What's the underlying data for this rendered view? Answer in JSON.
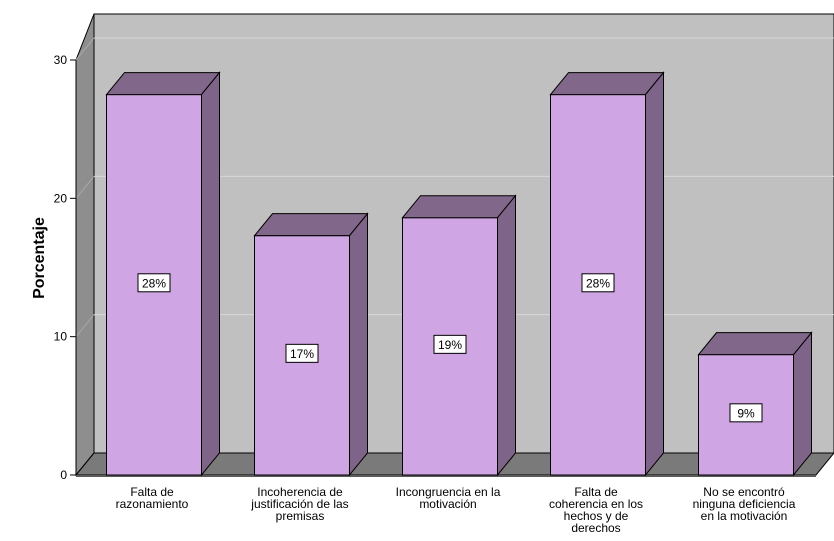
{
  "chart_data": {
    "type": "bar",
    "style": "3d",
    "title": "",
    "xlabel": "",
    "ylabel": "Porcentaje",
    "ylim": [
      0,
      30
    ],
    "yticks": [
      0,
      10,
      20,
      30
    ],
    "grid": true,
    "legend": "none",
    "categories": [
      [
        "Falta de",
        "razonamiento"
      ],
      [
        "Incoherencia de",
        "justificación de las",
        "premisas"
      ],
      [
        "Incongruencia en la",
        "motivación"
      ],
      [
        "Falta de",
        "coherencia en los",
        "hechos y de",
        "derechos"
      ],
      [
        "No se encontró",
        "ninguna deficiencia",
        "en la motivación"
      ]
    ],
    "values": [
      27.5,
      17.3,
      18.6,
      27.5,
      8.7
    ],
    "data_labels": [
      "28%",
      "17%",
      "19%",
      "28%",
      "9%"
    ],
    "colors": {
      "bar_front": "#cfa5e3",
      "bar_top": "#816789",
      "bar_side": "#7e6488",
      "plot_back": "#c0c0c0",
      "plot_wall": "#8e8e8e",
      "plot_floor": "#7a7a7a",
      "gridline": "#d8d8d8"
    }
  }
}
